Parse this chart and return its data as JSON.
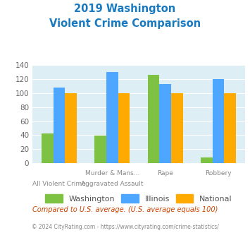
{
  "title_line1": "2019 Washington",
  "title_line2": "Violent Crime Comparison",
  "cat_labels_line1": [
    "",
    "Murder & Mans...",
    "Rape",
    "Robbery"
  ],
  "cat_labels_line2": [
    "All Violent Crime",
    "Aggravated Assault",
    "",
    ""
  ],
  "washington": [
    42,
    39,
    126,
    8
  ],
  "illinois": [
    108,
    130,
    113,
    120
  ],
  "national": [
    100,
    100,
    100,
    100
  ],
  "washington_color": "#7dc242",
  "illinois_color": "#4da6ff",
  "national_color": "#ffaa00",
  "title_color": "#1a7abf",
  "bg_color": "#ddeef5",
  "ylim": [
    0,
    140
  ],
  "yticks": [
    0,
    20,
    40,
    60,
    80,
    100,
    120,
    140
  ],
  "footnote": "Compared to U.S. average. (U.S. average equals 100)",
  "copyright": "© 2024 CityRating.com - https://www.cityrating.com/crime-statistics/",
  "footnote_color": "#cc4400",
  "copyright_color": "#888888",
  "legend_labels": [
    "Washington",
    "Illinois",
    "National"
  ]
}
